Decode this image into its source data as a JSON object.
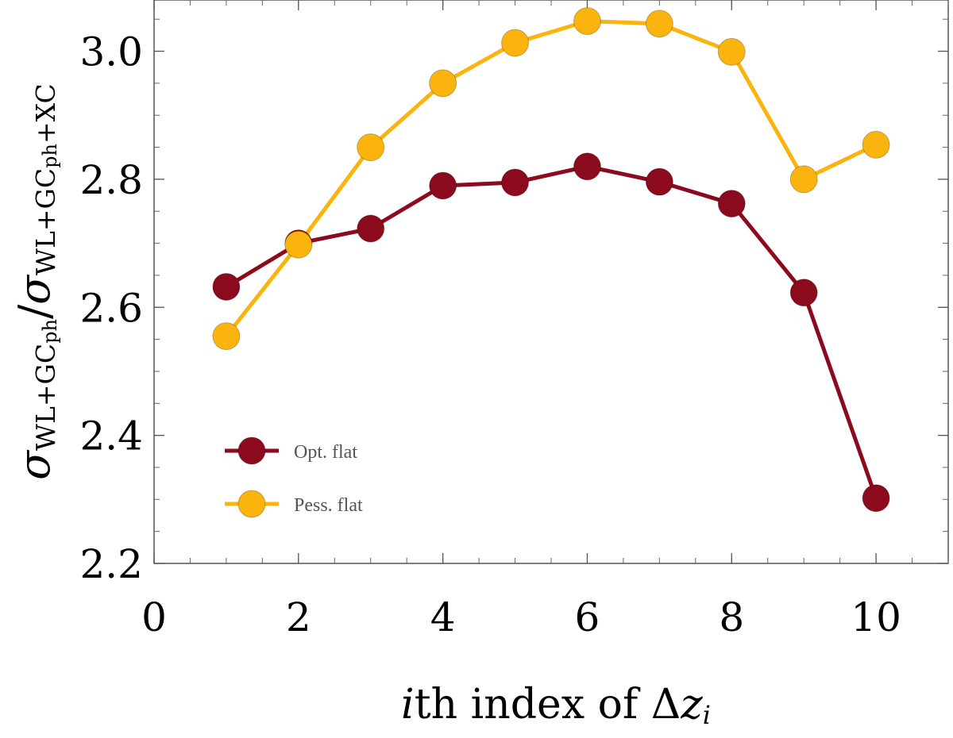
{
  "chart_data": {
    "type": "line",
    "xlabel": {
      "parts": [
        {
          "text": "i",
          "italic": true
        },
        {
          "text": "th index of ",
          "italic": false
        },
        {
          "text": "Δ",
          "italic": false
        },
        {
          "text": "z",
          "italic": true
        },
        {
          "text": "i",
          "italic": true,
          "sub": true
        }
      ]
    },
    "ylabel": {
      "parts": [
        {
          "text": "σ",
          "italic": true
        },
        {
          "text": "WL+GC",
          "sub": true
        },
        {
          "text": "ph",
          "subsub": true
        },
        {
          "text": "/",
          "italic": false
        },
        {
          "text": "σ",
          "italic": true
        },
        {
          "text": "WL+GC",
          "sub": true
        },
        {
          "text": "ph",
          "subsub": true
        },
        {
          "text": "+XC",
          "sub": true
        }
      ]
    },
    "xlim": [
      0,
      11
    ],
    "ylim": [
      2.2,
      3.08
    ],
    "xticks": [
      0,
      2,
      4,
      6,
      8,
      10
    ],
    "yticks": [
      2.2,
      2.4,
      2.6,
      2.8,
      3.0
    ],
    "ytick_labels": [
      "2.2",
      "2.4",
      "2.6",
      "2.8",
      "3.0"
    ],
    "x_minor_step": 0.5,
    "y_minor_step": 0.05,
    "grid": false,
    "legend_position": "lower-left",
    "series": [
      {
        "name": "Opt. flat",
        "color": "#8c0a1e",
        "x": [
          1,
          2,
          3,
          4,
          5,
          6,
          7,
          8,
          9,
          10
        ],
        "y": [
          2.632,
          2.7,
          2.723,
          2.79,
          2.795,
          2.82,
          2.796,
          2.762,
          2.623,
          2.302
        ]
      },
      {
        "name": "Pess. flat",
        "color": "#fbb40e",
        "x": [
          1,
          2,
          3,
          4,
          5,
          6,
          7,
          8,
          9,
          10
        ],
        "y": [
          2.555,
          2.698,
          2.85,
          2.95,
          3.013,
          3.047,
          3.043,
          2.999,
          2.8,
          2.854
        ]
      }
    ]
  }
}
